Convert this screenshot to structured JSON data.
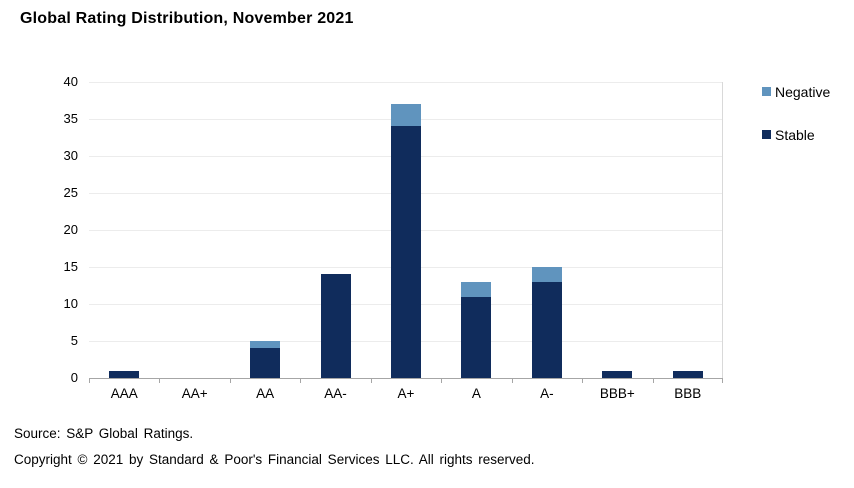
{
  "title": "Global Rating Distribution, November 2021",
  "legend": {
    "items": [
      {
        "label": "Negative",
        "color": "#6094BE"
      },
      {
        "label": "Stable",
        "color": "#102C5C"
      }
    ]
  },
  "footer": {
    "source": "Source: S&P Global Ratings.",
    "copyright": "Copyright © 2021 by Standard & Poor's Financial Services LLC. All rights reserved."
  },
  "colors": {
    "stable": "#102C5C",
    "negative": "#6094BE",
    "gridline": "#ECECEC",
    "axis": "#A6A6A6",
    "plot_border": "#D9D9D9",
    "text": "#000000"
  },
  "chart_data": {
    "type": "bar",
    "stacked": true,
    "title": "Global Rating Distribution, November 2021",
    "categories": [
      "AAA",
      "AA+",
      "AA",
      "AA-",
      "A+",
      "A",
      "A-",
      "BBB+",
      "BBB"
    ],
    "series": [
      {
        "name": "Stable",
        "color": "#102C5C",
        "values": [
          1,
          0,
          4,
          14,
          34,
          11,
          13,
          1,
          1
        ]
      },
      {
        "name": "Negative",
        "color": "#6094BE",
        "values": [
          0,
          0,
          1,
          0,
          3,
          2,
          2,
          0,
          0
        ]
      }
    ],
    "totals": [
      1,
      0,
      5,
      14,
      37,
      13,
      15,
      1,
      1
    ],
    "xlabel": "",
    "ylabel": "",
    "ylim": [
      0,
      40
    ],
    "yticks": [
      0,
      5,
      10,
      15,
      20,
      25,
      30,
      35,
      40
    ],
    "grid": true,
    "legend_position": "right"
  }
}
